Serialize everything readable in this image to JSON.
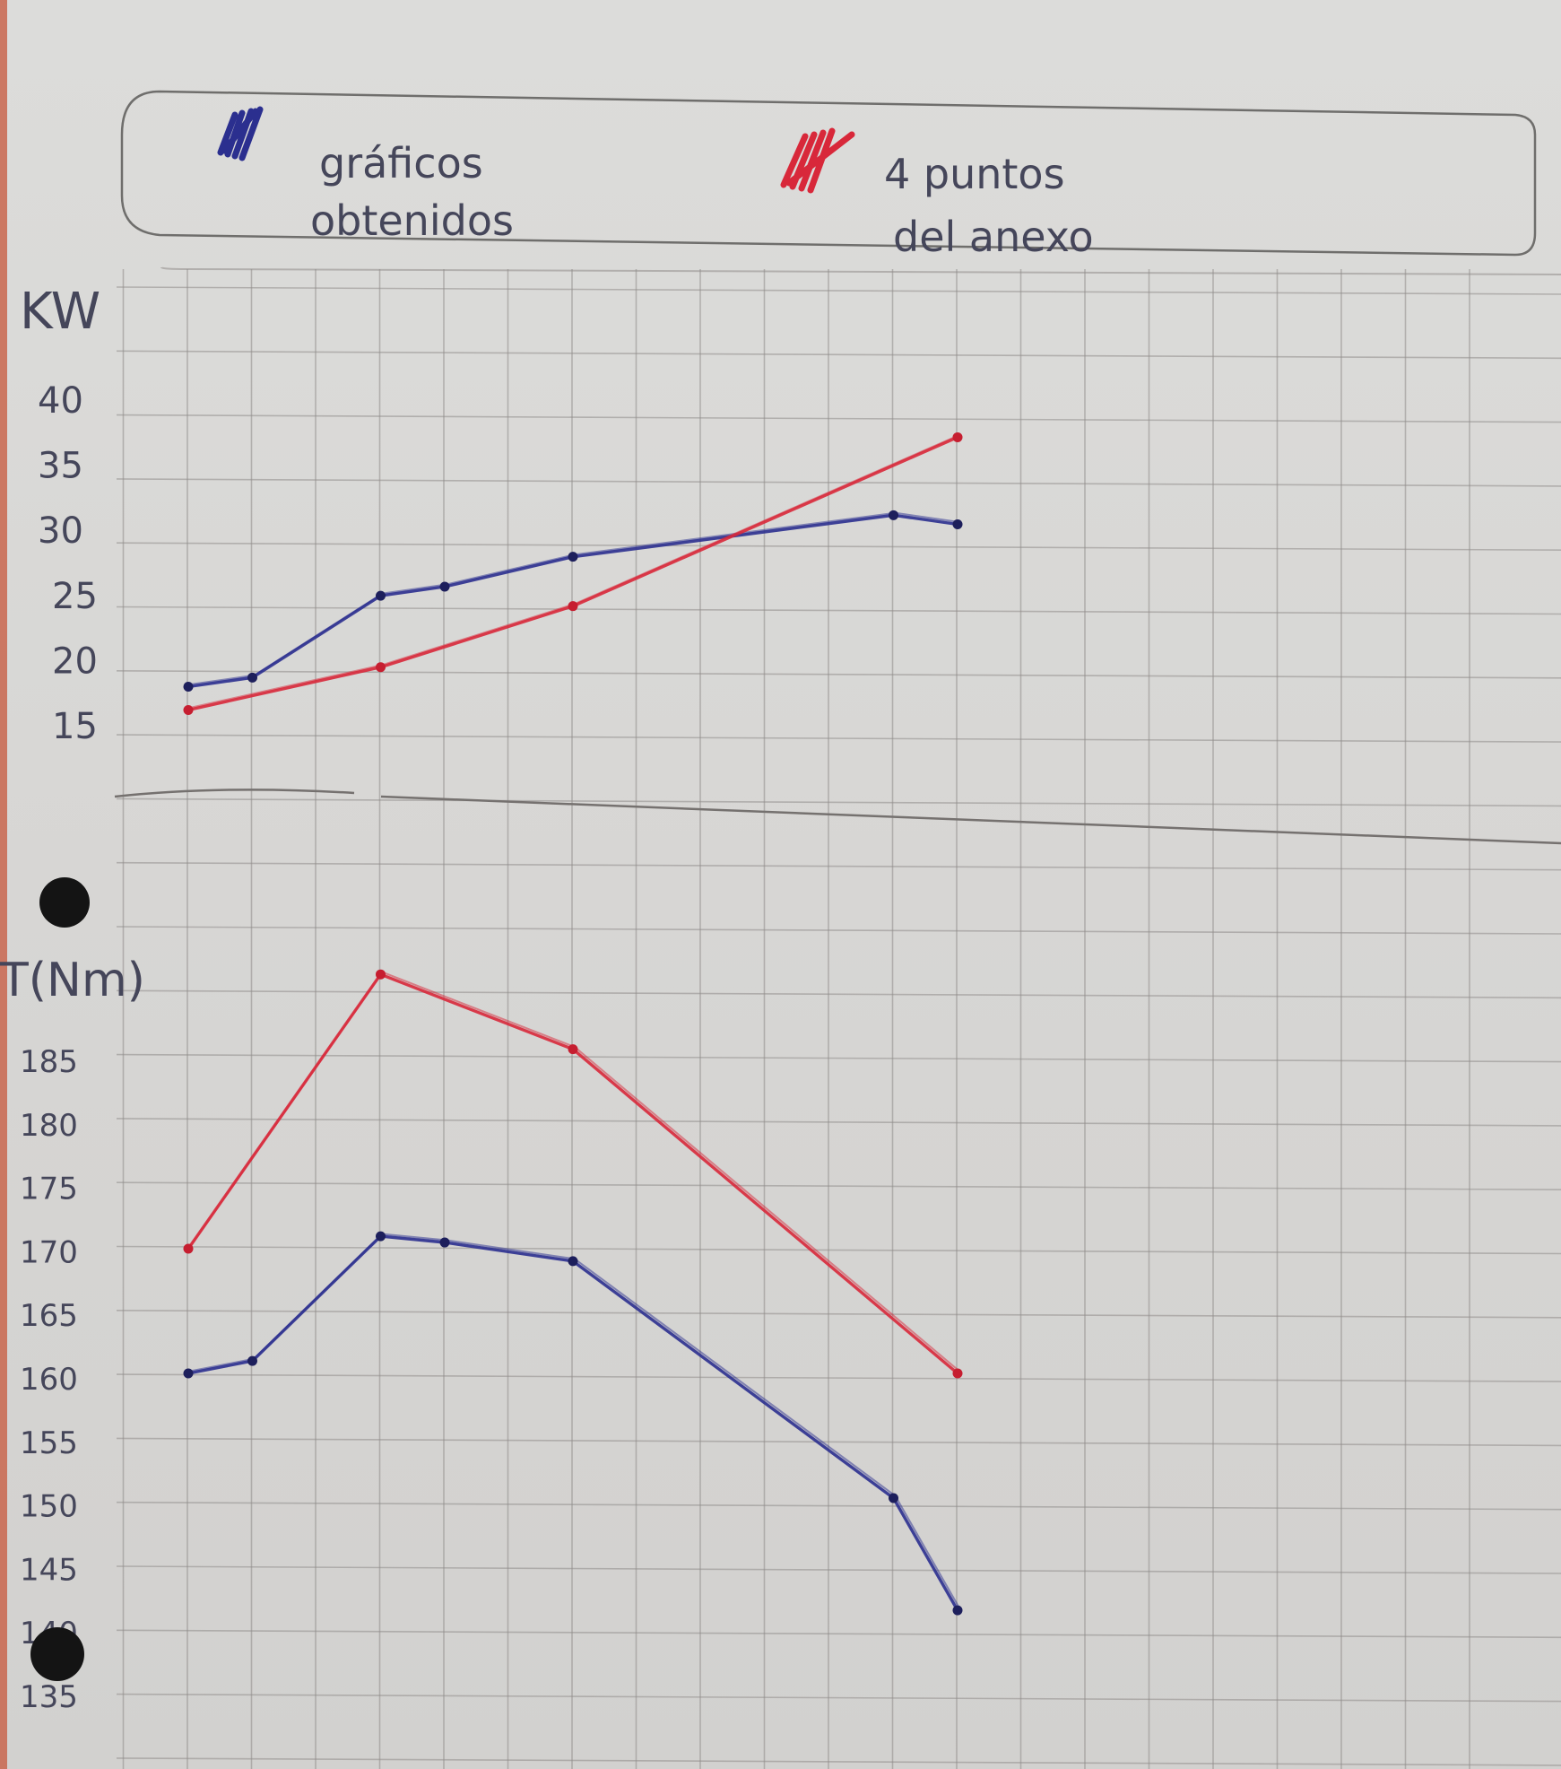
{
  "legend": [
    {
      "label_line1": "gráficos",
      "label_line2": "obtenidos",
      "color": "#2b2f8f"
    },
    {
      "label_line1": "4 puntos",
      "label_line2": "del anexo",
      "color": "#d8283a"
    }
  ],
  "chart_data": [
    {
      "type": "line",
      "ylabel": "KW",
      "y_ticks": [
        "40",
        "35",
        "30",
        "25",
        "20",
        "15"
      ],
      "ylim": [
        10,
        42
      ],
      "xlim": [
        0,
        12
      ],
      "grid": true,
      "series": [
        {
          "color": "#2b2f8f",
          "points": [
            [
              0,
              17.8
            ],
            [
              1,
              18.5
            ],
            [
              3,
              24.8
            ],
            [
              4,
              25.5
            ],
            [
              6,
              27.8
            ],
            [
              11,
              31
            ],
            [
              12,
              30.3
            ]
          ]
        },
        {
          "color": "#d8283a",
          "points": [
            [
              0,
              16
            ],
            [
              3,
              19.3
            ],
            [
              6,
              24
            ],
            [
              12,
              37
            ]
          ]
        }
      ]
    },
    {
      "type": "line",
      "ylabel": "T(Nm)",
      "y_ticks": [
        "185",
        "180",
        "175",
        "170",
        "165",
        "160",
        "155",
        "150",
        "145",
        "140",
        "135"
      ],
      "ylim": [
        133,
        195
      ],
      "xlim": [
        0,
        12
      ],
      "grid": true,
      "series": [
        {
          "color": "#2b2f8f",
          "points": [
            [
              0,
              160
            ],
            [
              1,
              161
            ],
            [
              3,
              171
            ],
            [
              4,
              170.5
            ],
            [
              6,
              169
            ],
            [
              11,
              150
            ],
            [
              12,
              141
            ]
          ]
        },
        {
          "color": "#d8283a",
          "points": [
            [
              0,
              170
            ],
            [
              3,
              192
            ],
            [
              6,
              186
            ],
            [
              12,
              160
            ]
          ]
        }
      ]
    }
  ]
}
